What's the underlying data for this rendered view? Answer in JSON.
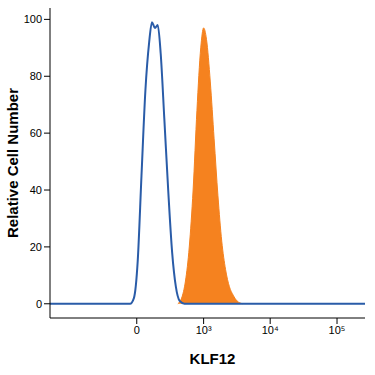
{
  "chart_data": {
    "type": "line",
    "x_label": "KLF12",
    "y_label": "Relative Cell Number",
    "xlim": [
      -2000,
      262144
    ],
    "xticks": [
      0,
      {
        "value": 1000,
        "label": "10³"
      },
      {
        "value": 10000,
        "label": "10⁴"
      },
      {
        "value": 100000,
        "label": "10⁵"
      }
    ],
    "ylim": [
      -5,
      104
    ],
    "yticks": [
      0,
      20,
      40,
      60,
      80,
      100
    ],
    "grid": false,
    "series": [
      {
        "type": "area",
        "color": "#f5821f",
        "x": [
          391,
          452,
          522,
          600,
          689,
          790,
          904,
          1000,
          1106,
          1264,
          1443,
          1648,
          1881,
          2148,
          2451,
          2797,
          3192,
          3887
        ],
        "values": [
          0,
          2,
          8,
          20,
          40,
          68,
          90,
          97,
          93,
          78,
          58,
          38,
          22,
          12,
          6,
          3,
          1,
          0
        ]
      },
      {
        "type": "line",
        "color": "#2a5ca8",
        "x": [
          -2000,
          -47,
          -20,
          6.6,
          33,
          61,
          89,
          111,
          135,
          159,
          186,
          222,
          264,
          312,
          362,
          420,
          503,
          262144
        ],
        "values": [
          0,
          0,
          2,
          15,
          45,
          75,
          92,
          99,
          97,
          98,
          88,
          65,
          40,
          18,
          6,
          1,
          0,
          0
        ]
      }
    ]
  }
}
